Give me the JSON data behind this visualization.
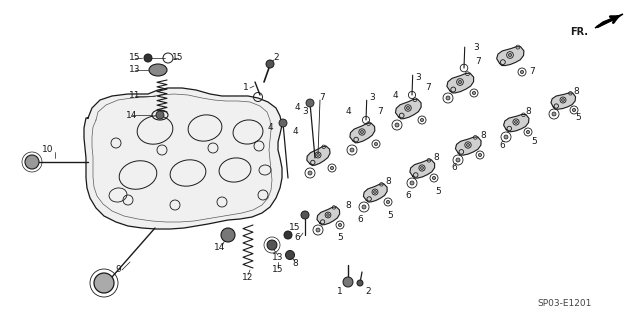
{
  "bg_color": "#ffffff",
  "line_color": "#1a1a1a",
  "watermark": "SP03-E1201",
  "fig_w": 6.4,
  "fig_h": 3.19,
  "dpi": 100
}
